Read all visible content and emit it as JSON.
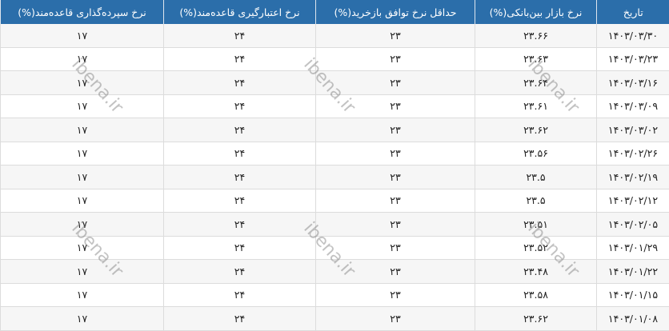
{
  "table": {
    "headers": [
      "تاریخ",
      "نرخ بازار بین‌بانکی(%)",
      "حداقل نرخ توافق بازخرید(%)",
      "نرخ اعتبارگیری قاعده‌مند(%)",
      "نرخ سپرده‌گذاری قاعده‌مند(%)"
    ],
    "rows": [
      [
        "۱۴۰۳/۰۳/۳۰",
        "۲۳.۶۶",
        "۲۳",
        "۲۴",
        "۱۷"
      ],
      [
        "۱۴۰۳/۰۳/۲۳",
        "۲۳.۶۳",
        "۲۳",
        "۲۴",
        "۱۷"
      ],
      [
        "۱۴۰۳/۰۳/۱۶",
        "۲۳.۶۴",
        "۲۳",
        "۲۴",
        "۱۷"
      ],
      [
        "۱۴۰۳/۰۳/۰۹",
        "۲۳.۶۱",
        "۲۳",
        "۲۴",
        "۱۷"
      ],
      [
        "۱۴۰۳/۰۳/۰۲",
        "۲۳.۶۲",
        "۲۳",
        "۲۴",
        "۱۷"
      ],
      [
        "۱۴۰۳/۰۲/۲۶",
        "۲۳.۵۶",
        "۲۳",
        "۲۴",
        "۱۷"
      ],
      [
        "۱۴۰۳/۰۲/۱۹",
        "۲۳.۵",
        "۲۳",
        "۲۴",
        "۱۷"
      ],
      [
        "۱۴۰۳/۰۲/۱۲",
        "۲۳.۵",
        "۲۳",
        "۲۴",
        "۱۷"
      ],
      [
        "۱۴۰۳/۰۲/۰۵",
        "۲۳.۵۱",
        "۲۳",
        "۲۴",
        "۱۷"
      ],
      [
        "۱۴۰۳/۰۱/۲۹",
        "۲۳.۵۲",
        "۲۳",
        "۲۴",
        "۱۷"
      ],
      [
        "۱۴۰۳/۰۱/۲۲",
        "۲۳.۴۸",
        "۲۳",
        "۲۴",
        "۱۷"
      ],
      [
        "۱۴۰۳/۰۱/۱۵",
        "۲۳.۵۸",
        "۲۳",
        "۲۴",
        "۱۷"
      ],
      [
        "۱۴۰۳/۰۱/۰۸",
        "۲۳.۶۲",
        "۲۳",
        "۲۴",
        "۱۷"
      ]
    ]
  },
  "watermark": "ibena.ir",
  "colors": {
    "header_bg": "#2b6eaa"
  }
}
